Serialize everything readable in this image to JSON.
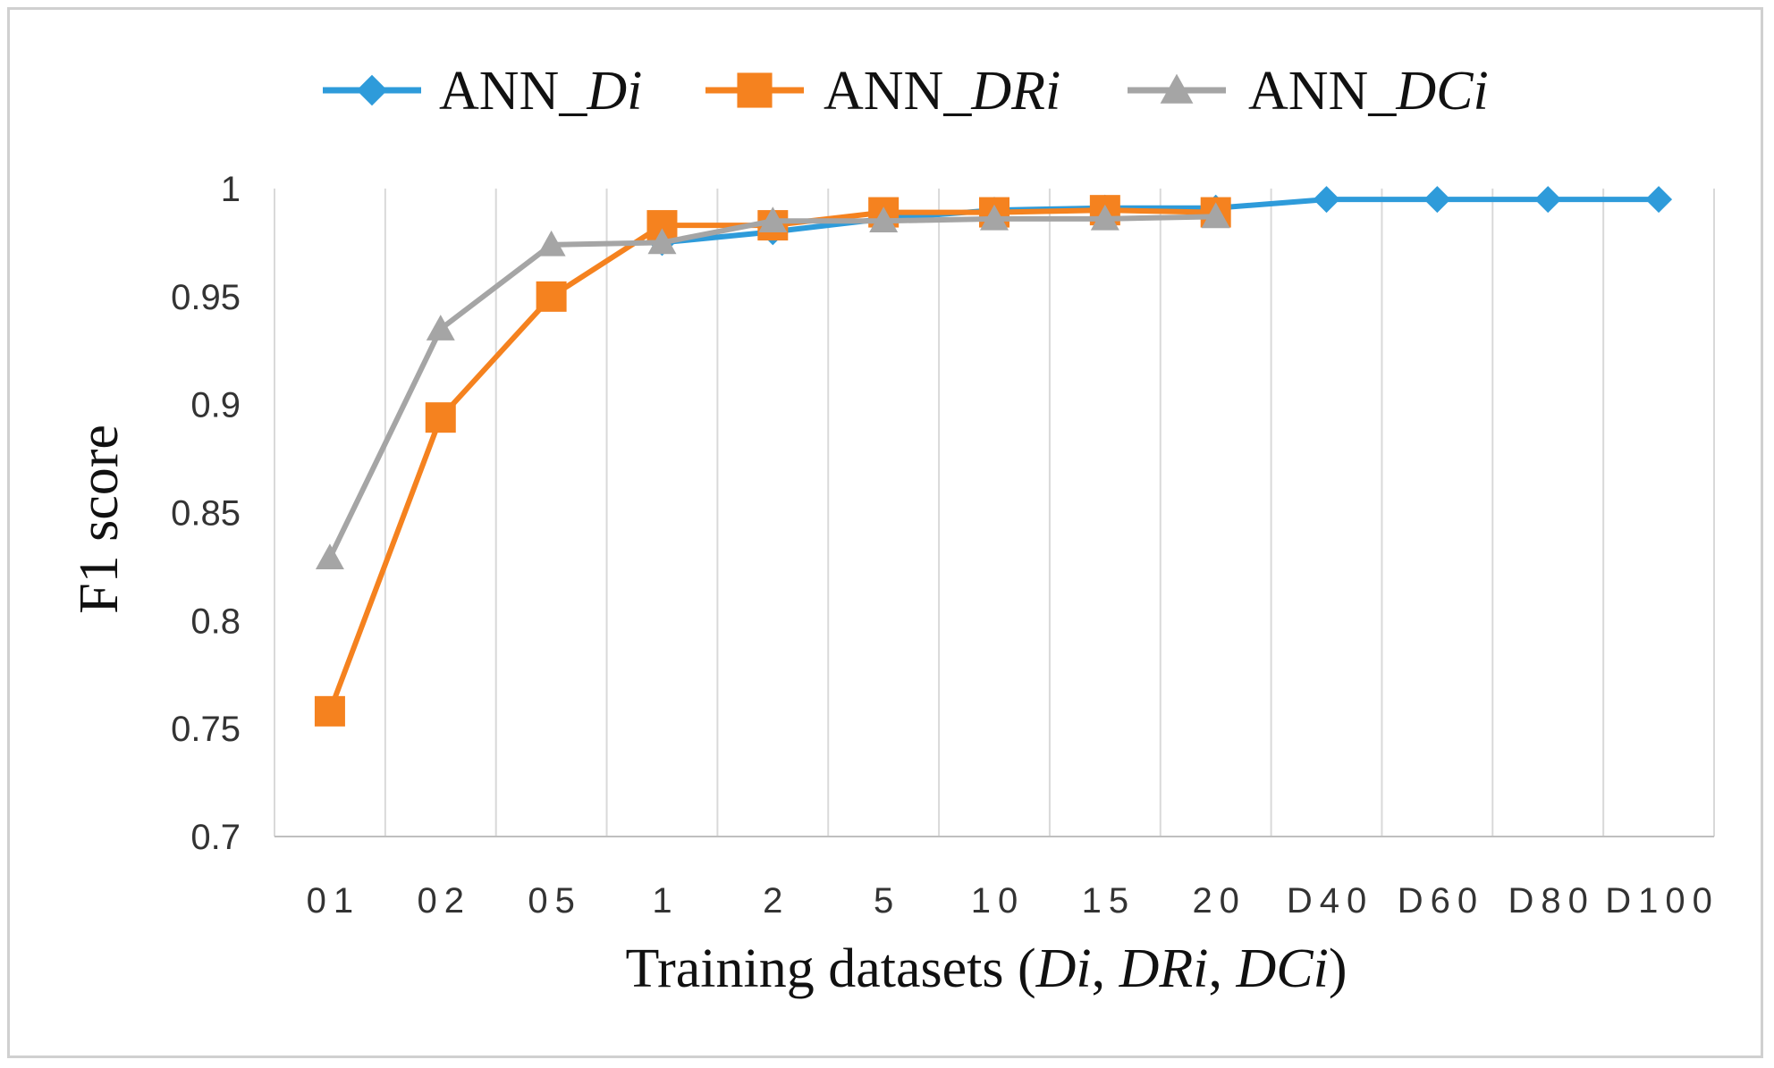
{
  "chart_data": {
    "type": "line",
    "categories": [
      "01",
      "02",
      "05",
      "1",
      "2",
      "5",
      "10",
      "15",
      "20",
      "D40",
      "D60",
      "D80",
      "D100"
    ],
    "series": [
      {
        "name": "ANN_Di",
        "prefix": "ANN_",
        "suffix": "Di",
        "color": "#2E9BDA",
        "marker": "diamond",
        "values": [
          null,
          null,
          null,
          0.975,
          0.98,
          0.986,
          0.99,
          0.991,
          0.991,
          0.995,
          0.995,
          0.995,
          0.995
        ]
      },
      {
        "name": "ANN_DRi",
        "prefix": "ANN_",
        "suffix": "DRi",
        "color": "#F5821F",
        "marker": "square",
        "values": [
          0.758,
          0.894,
          0.95,
          0.983,
          0.983,
          0.989,
          0.989,
          0.99,
          0.989,
          null,
          null,
          null,
          null
        ]
      },
      {
        "name": "ANN_DCi",
        "prefix": "ANN_",
        "suffix": "DCi",
        "color": "#A5A5A5",
        "marker": "triangle",
        "values": [
          0.829,
          0.935,
          0.974,
          0.975,
          0.985,
          0.985,
          0.986,
          0.986,
          0.987,
          null,
          null,
          null,
          null
        ]
      }
    ],
    "ylim": [
      0.7,
      1.0
    ],
    "yticks": [
      "0.7",
      "0.75",
      "0.8",
      "0.85",
      "0.9",
      "0.95",
      "1"
    ],
    "ylabel": "F1 score",
    "xlabel": {
      "before": "Training datasets (",
      "term1": "Di",
      "sep1": ", ",
      "term2": "DRi",
      "sep2": ", ",
      "term3": "DCi",
      "after": ")"
    },
    "grid": "vertical",
    "legend": "top"
  }
}
